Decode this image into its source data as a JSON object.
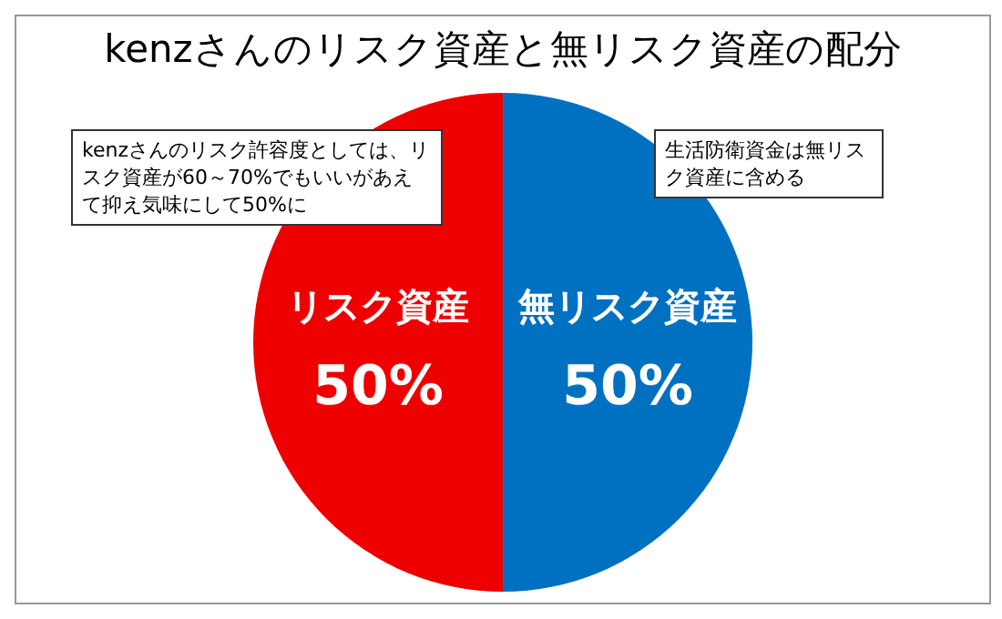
{
  "chart_data": {
    "type": "pie",
    "title": "kenzさんのリスク資産と無リスク資産の配分",
    "categories": [
      "リスク資産",
      "無リスク資産"
    ],
    "values": [
      50,
      50
    ],
    "colors": [
      "#ee0000",
      "#0070c0"
    ],
    "value_labels": [
      "50%",
      "50%"
    ],
    "annotations": [
      "kenzさんのリスク許容度としては、リスク資産が60～70%でもいいがあえて抑え気味にして50%に",
      "生活防衛資金は無リスク資産に含める"
    ],
    "legend": false
  }
}
